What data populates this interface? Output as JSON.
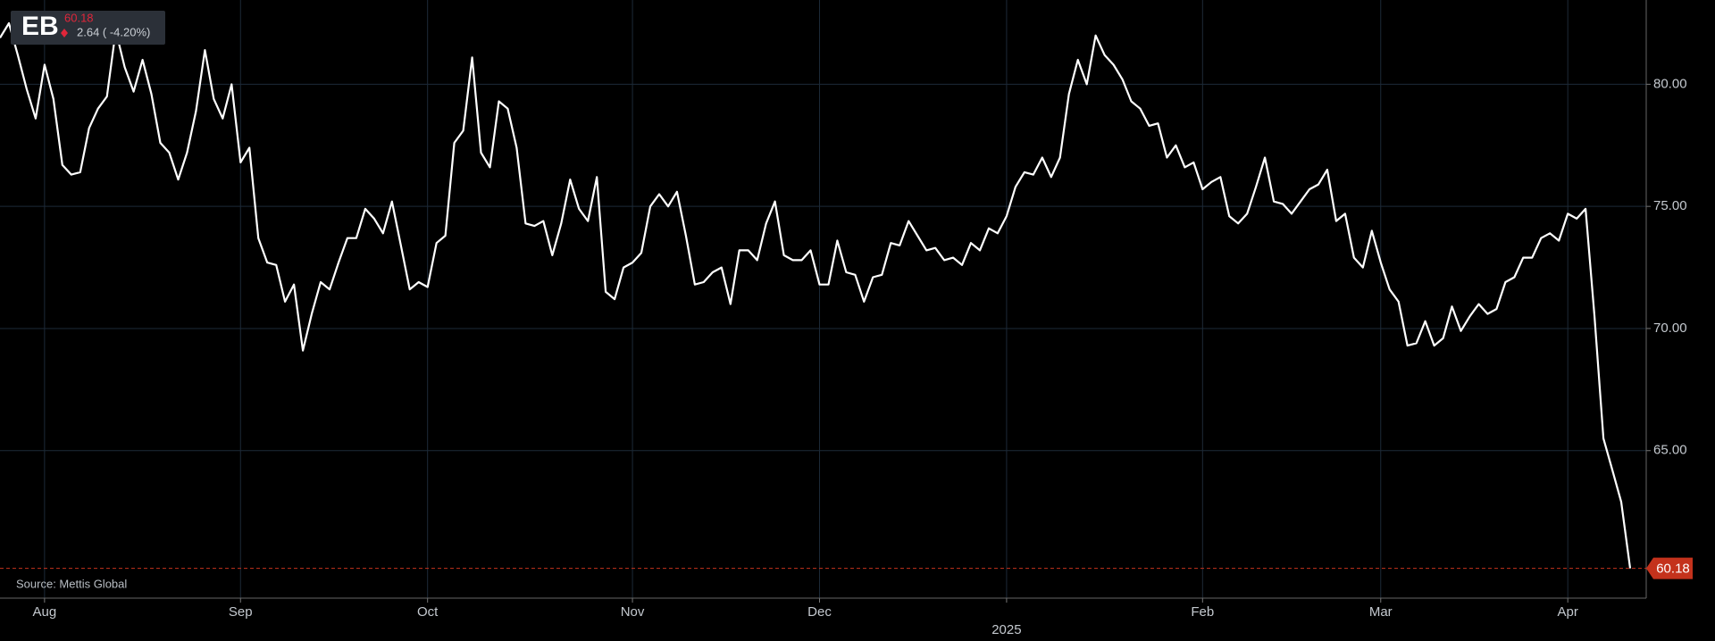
{
  "chart_data": {
    "type": "line",
    "ticker": "EB",
    "change_label": "2.64 ( -4.20%)",
    "source": "Source: Mettis Global",
    "grid": true,
    "ylim": [
      58.96,
      83.45
    ],
    "yticks": [
      {
        "value": 65,
        "label": "65.00"
      },
      {
        "value": 70,
        "label": "70.00"
      },
      {
        "value": 75,
        "label": "75.00"
      },
      {
        "value": 80,
        "label": "80.00"
      }
    ],
    "categories": [
      null,
      null,
      null,
      null,
      null,
      "Aug",
      null,
      null,
      null,
      null,
      null,
      null,
      null,
      null,
      null,
      null,
      null,
      null,
      null,
      null,
      null,
      null,
      null,
      null,
      null,
      null,
      null,
      "Sep",
      null,
      null,
      null,
      null,
      null,
      null,
      null,
      null,
      null,
      null,
      null,
      null,
      null,
      null,
      null,
      null,
      null,
      null,
      null,
      null,
      "Oct",
      null,
      null,
      null,
      null,
      null,
      null,
      null,
      null,
      null,
      null,
      null,
      null,
      null,
      null,
      null,
      null,
      null,
      null,
      null,
      null,
      null,
      null,
      "Nov",
      null,
      null,
      null,
      null,
      null,
      null,
      null,
      null,
      null,
      null,
      null,
      null,
      null,
      null,
      null,
      null,
      null,
      null,
      null,
      null,
      "Dec",
      null,
      null,
      null,
      null,
      null,
      null,
      null,
      null,
      null,
      null,
      null,
      null,
      null,
      null,
      null,
      null,
      null,
      null,
      null,
      null,
      null,
      null,
      null,
      null,
      null,
      null,
      null,
      null,
      null,
      null,
      null,
      null,
      null,
      null,
      null,
      null,
      null,
      null,
      null,
      null,
      null,
      null,
      "Feb",
      null,
      null,
      null,
      null,
      null,
      null,
      null,
      null,
      null,
      null,
      null,
      null,
      null,
      null,
      null,
      null,
      null,
      null,
      null,
      "Mar",
      null,
      null,
      null,
      null,
      null,
      null,
      null,
      null,
      null,
      null,
      null,
      null,
      null,
      null,
      null,
      null,
      null,
      null,
      null,
      null,
      "Apr",
      null,
      null,
      null,
      null,
      null,
      null,
      null
    ],
    "x_sublabels": [
      null,
      null,
      null,
      null,
      null,
      null,
      null,
      null,
      null,
      null,
      null,
      null,
      null,
      null,
      null,
      null,
      null,
      null,
      null,
      null,
      null,
      null,
      null,
      null,
      null,
      null,
      null,
      null,
      null,
      null,
      null,
      null,
      null,
      null,
      null,
      null,
      null,
      null,
      null,
      null,
      null,
      null,
      null,
      null,
      null,
      null,
      null,
      null,
      null,
      null,
      null,
      null,
      null,
      null,
      null,
      null,
      null,
      null,
      null,
      null,
      null,
      null,
      null,
      null,
      null,
      null,
      null,
      null,
      null,
      null,
      null,
      null,
      null,
      null,
      null,
      null,
      null,
      null,
      null,
      null,
      null,
      null,
      null,
      null,
      null,
      null,
      null,
      null,
      null,
      null,
      null,
      null,
      null,
      null,
      null,
      null,
      null,
      null,
      null,
      null,
      null,
      null,
      null,
      null,
      null,
      null,
      null,
      null,
      null,
      null,
      null,
      null,
      null,
      "2025",
      null,
      null,
      null,
      null,
      null,
      null,
      null,
      null,
      null,
      null,
      null,
      null,
      null,
      null,
      null,
      null,
      null,
      null,
      null,
      null,
      null,
      null,
      null,
      null,
      null,
      null,
      null,
      null,
      null,
      null,
      null,
      null,
      null,
      null,
      null,
      null,
      null,
      null,
      null,
      null,
      null,
      null,
      null,
      null,
      null,
      null,
      null,
      null,
      null,
      null,
      null,
      null,
      null,
      null,
      null,
      null,
      null,
      null,
      null,
      null,
      null,
      null,
      null,
      null,
      null,
      null,
      null,
      null,
      null,
      null
    ],
    "series": [
      {
        "color": "#ffffff",
        "values": [
          81.9,
          82.5,
          81.2,
          79.8,
          78.6,
          80.8,
          79.4,
          76.7,
          76.3,
          76.4,
          78.2,
          79.0,
          79.5,
          82.2,
          80.7,
          79.7,
          81.0,
          79.6,
          77.6,
          77.2,
          76.1,
          77.2,
          78.9,
          81.4,
          79.4,
          78.6,
          80.0,
          76.8,
          77.4,
          73.7,
          72.7,
          72.6,
          71.1,
          71.8,
          69.1,
          70.6,
          71.9,
          71.6,
          72.7,
          73.7,
          73.7,
          74.9,
          74.5,
          73.9,
          75.2,
          73.4,
          71.6,
          71.9,
          71.7,
          73.5,
          73.8,
          77.6,
          78.1,
          81.1,
          77.2,
          76.6,
          79.3,
          79.0,
          77.4,
          74.3,
          74.2,
          74.4,
          73.0,
          74.3,
          76.1,
          74.9,
          74.4,
          76.2,
          71.5,
          71.2,
          72.5,
          72.7,
          73.1,
          75.0,
          75.5,
          75.0,
          75.6,
          73.8,
          71.8,
          71.9,
          72.3,
          72.5,
          71.0,
          73.2,
          73.2,
          72.8,
          74.3,
          75.2,
          73.0,
          72.8,
          72.8,
          73.2,
          71.8,
          71.8,
          73.6,
          72.3,
          72.2,
          71.1,
          72.1,
          72.2,
          73.5,
          73.4,
          74.4,
          73.8,
          73.2,
          73.3,
          72.8,
          72.9,
          72.6,
          73.5,
          73.2,
          74.1,
          73.9,
          74.6,
          75.8,
          76.4,
          76.3,
          77.0,
          76.2,
          77.0,
          79.6,
          81.0,
          80.0,
          82.0,
          81.2,
          80.8,
          80.2,
          79.3,
          79.0,
          78.3,
          78.4,
          77.0,
          77.5,
          76.6,
          76.8,
          75.7,
          76.0,
          76.2,
          74.6,
          74.3,
          74.7,
          75.8,
          77.0,
          75.2,
          75.1,
          74.7,
          75.2,
          75.7,
          75.9,
          76.5,
          74.4,
          74.7,
          72.9,
          72.5,
          74.0,
          72.7,
          71.6,
          71.1,
          69.3,
          69.4,
          70.3,
          69.3,
          69.6,
          70.9,
          69.9,
          70.5,
          71.0,
          70.6,
          70.8,
          71.9,
          72.1,
          72.9,
          72.9,
          73.7,
          73.9,
          73.6,
          74.7,
          74.5,
          74.9,
          70.5,
          65.5,
          64.2,
          62.9,
          60.18
        ]
      }
    ],
    "last_value_color": "#c4321c",
    "down_color": "#e0263a"
  }
}
